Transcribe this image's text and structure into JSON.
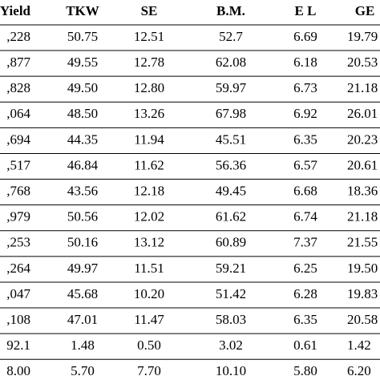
{
  "table": {
    "header": [
      "Yield",
      "TKW",
      "SE",
      "B.M.",
      "E L",
      "GE"
    ],
    "rows": [
      [
        ",228",
        "50.75",
        "12.51",
        "52.7",
        "6.69",
        "19.79"
      ],
      [
        ",877",
        "49.55",
        "12.78",
        "62.08",
        "6.18",
        "20.53"
      ],
      [
        ",828",
        "49.50",
        "12.80",
        "59.97",
        "6.73",
        "21.18"
      ],
      [
        ",064",
        "48.50",
        "13.26",
        "67.98",
        "6.92",
        "26.01"
      ],
      [
        ",694",
        "44.35",
        "11.94",
        "45.51",
        "6.35",
        "20.23"
      ],
      [
        ",517",
        "46.84",
        "11.62",
        "56.36",
        "6.57",
        "20.61"
      ],
      [
        ",768",
        "43.56",
        "12.18",
        "49.45",
        "6.68",
        "18.36"
      ],
      [
        ",979",
        "50.56",
        "12.02",
        "61.62",
        "6.74",
        "21.18"
      ],
      [
        ",253",
        "50.16",
        "13.12",
        "60.89",
        "7.37",
        "21.55"
      ],
      [
        ",264",
        "49.97",
        "11.51",
        "59.21",
        "6.25",
        "19.50"
      ],
      [
        ",047",
        "45.68",
        "10.20",
        "51.42",
        "6.28",
        "19.83"
      ],
      [
        ",108",
        "47.01",
        "11.47",
        "58.03",
        "6.35",
        "20.58"
      ],
      [
        "92.1",
        "1.48",
        "0.50",
        "3.02",
        "0.61",
        "1.42"
      ],
      [
        "8.00",
        "5.70",
        "7.70",
        "10.10",
        "5.80",
        "6.20"
      ]
    ]
  }
}
